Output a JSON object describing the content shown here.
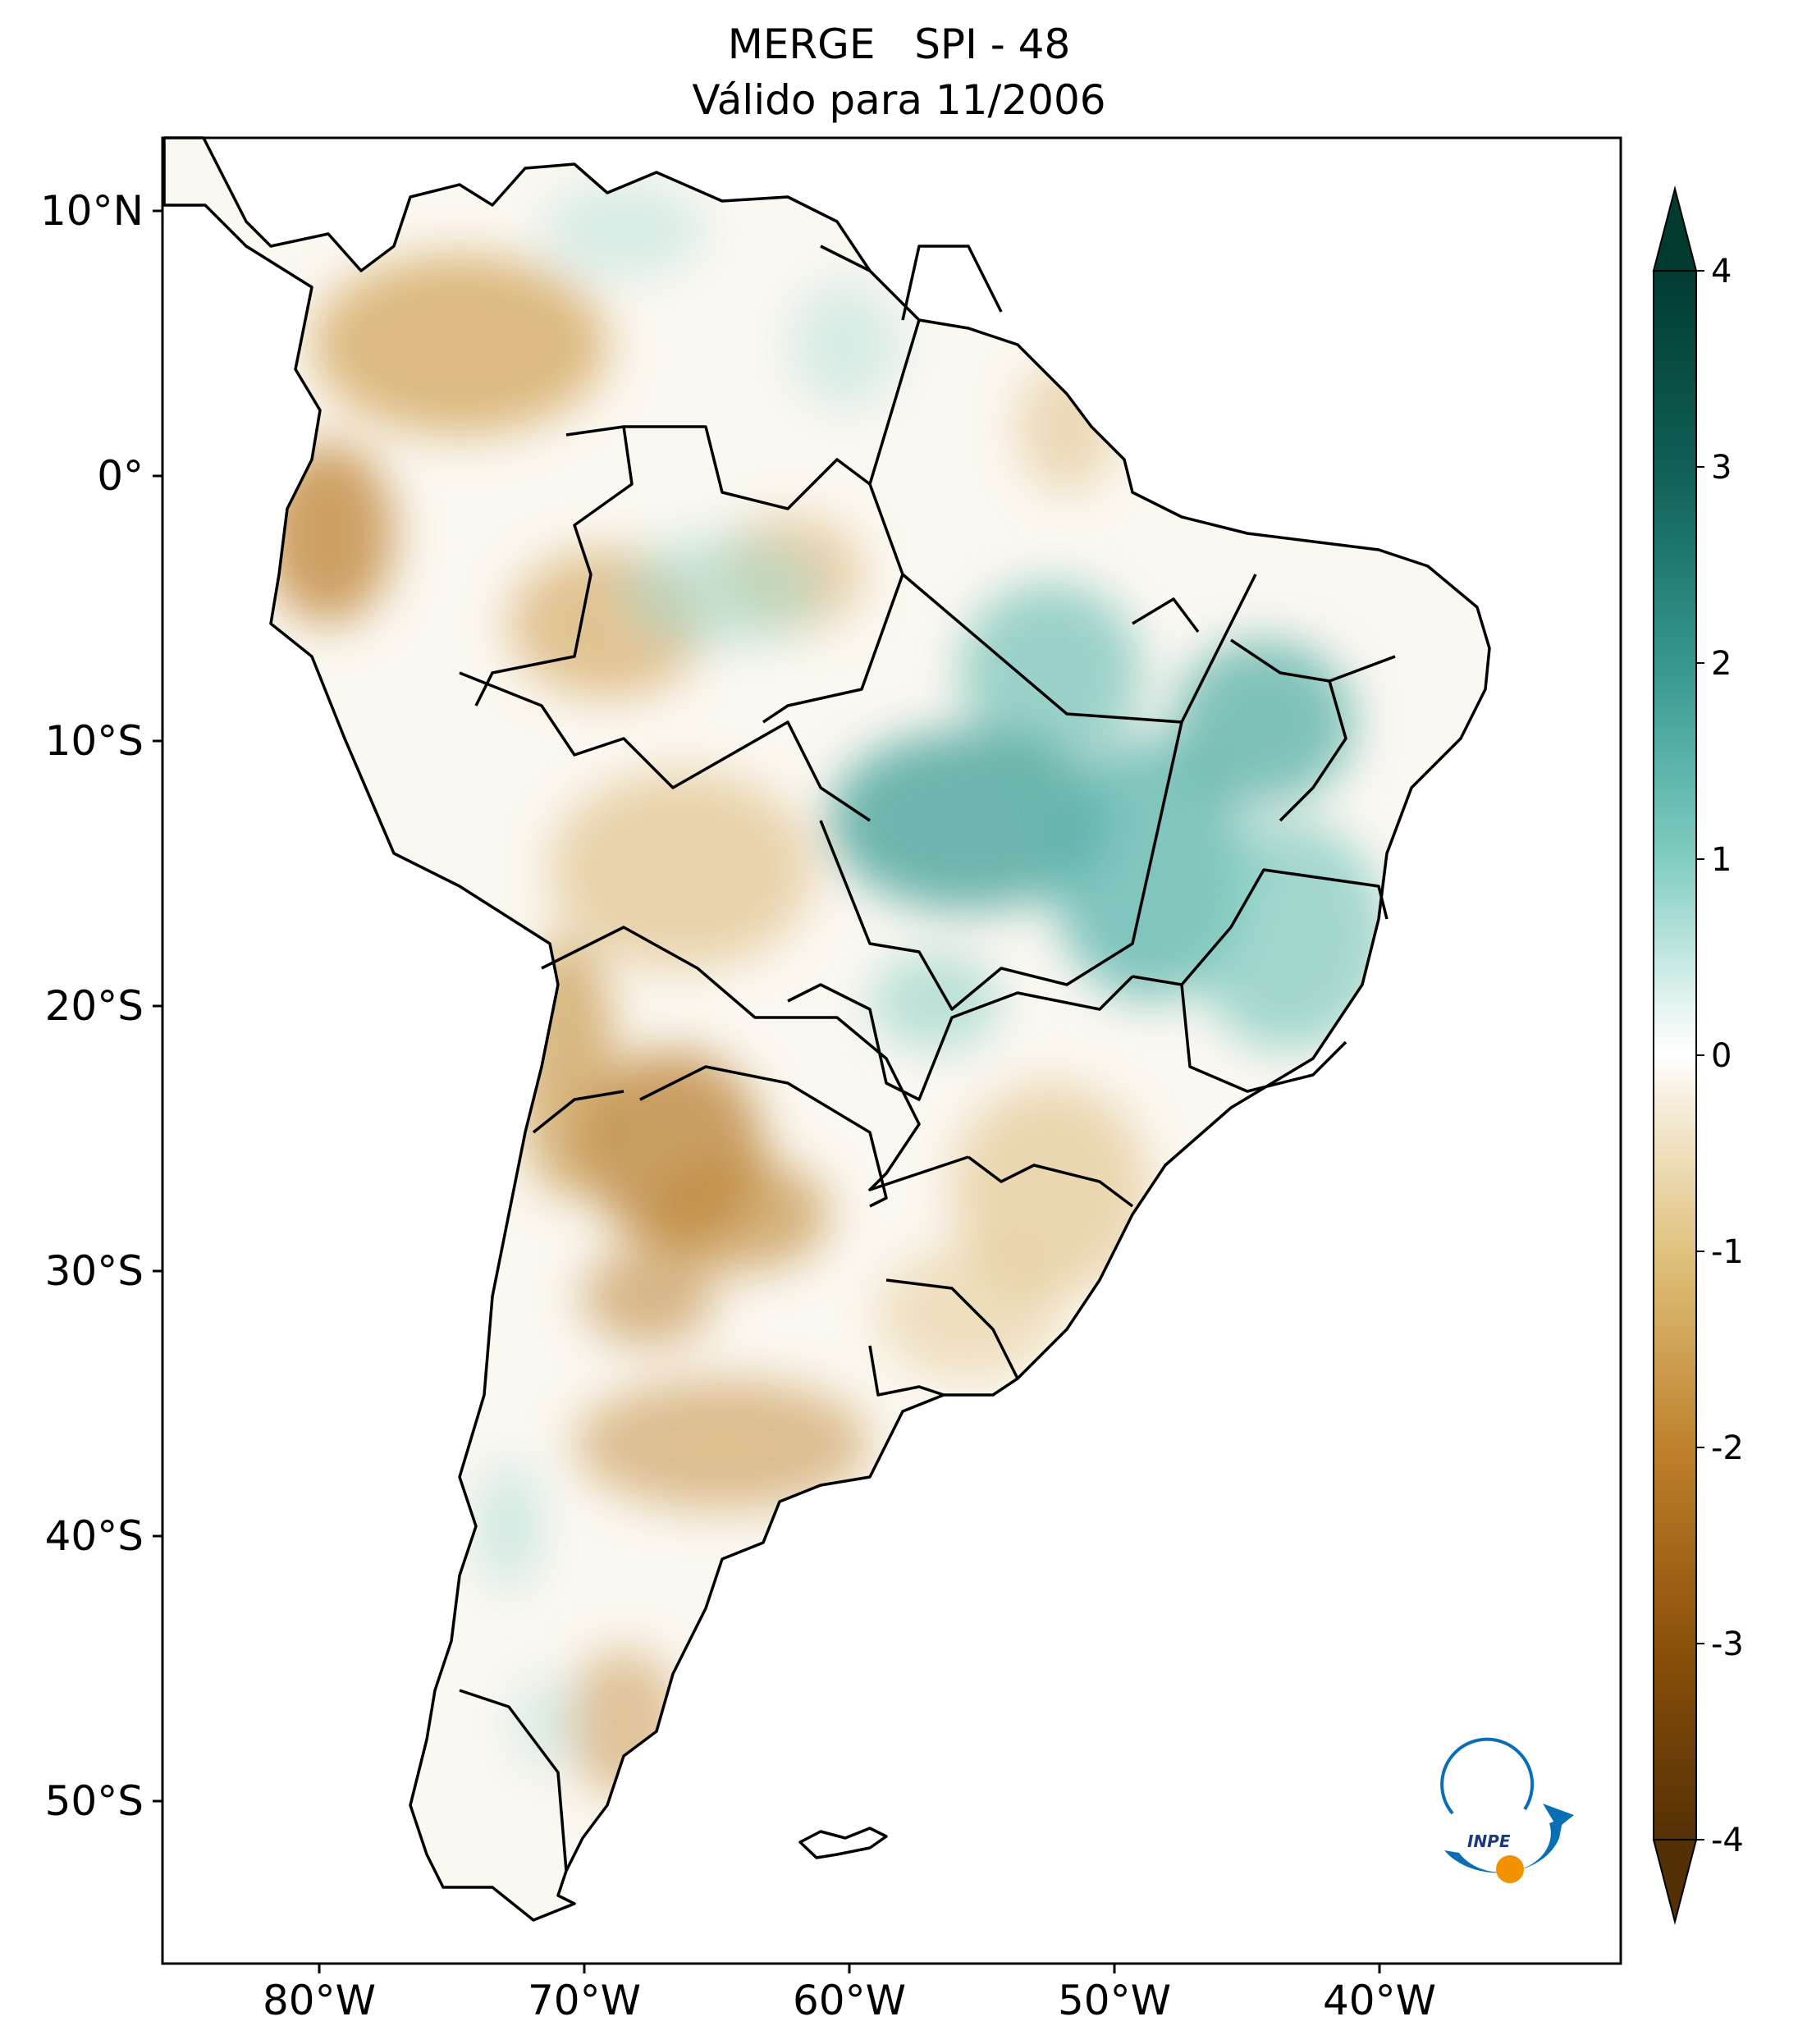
{
  "title": {
    "line1": "MERGE   SPI - 48",
    "line2": "Válido para 11/2006"
  },
  "map": {
    "lon_labels": [
      "80°W",
      "70°W",
      "60°W",
      "50°W",
      "40°W"
    ],
    "lat_labels": [
      "10°N",
      "0°",
      "10°S",
      "20°S",
      "30°S",
      "40°S",
      "50°S"
    ]
  },
  "colorbar": {
    "ticks": [
      "4",
      "3",
      "2",
      "1",
      "0",
      "-1",
      "-2",
      "-3",
      "-4"
    ],
    "colors": {
      "max": "#013b30",
      "high": "#35978f",
      "mid_high": "#80cdc1",
      "neutral": "#ffffff",
      "mid_low": "#dfc27d",
      "low": "#bf812d",
      "min": "#543005"
    }
  },
  "logo": {
    "text": "INPE"
  },
  "colors": {
    "wet": "#5ab4ac",
    "dry": "#c8954a",
    "orange_dot": "#f39200",
    "logo_blue": "#0a6eb4"
  }
}
